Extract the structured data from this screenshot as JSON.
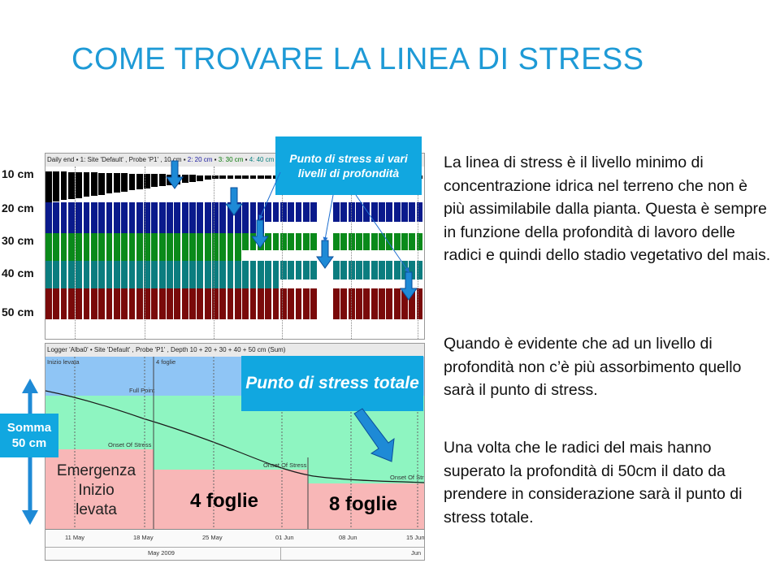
{
  "title": "COME  TROVARE LA LINEA DI STRESS",
  "paragraphs": [
    "La linea di stress è il livello minimo di concentrazione idrica nel terreno che non è più assimilabile dalla pianta. Questa è sempre in funzione della profondità di lavoro delle radici e quindi dello stadio vegetativo del mais.",
    "Quando è evidente che ad un livello di profondità non c’è più assorbimento quello sarà il punto di stress.",
    "Una volta che le radici del mais hanno superato la profondità di 50cm il dato da prendere in considerazione sarà il punto di stress totale."
  ],
  "depth_labels": [
    "10 cm",
    "20 cm",
    "30 cm",
    "40 cm",
    "50 cm"
  ],
  "chart_top": {
    "header_lead": "Daily end",
    "legend": [
      "1: Site 'Default' , Probe 'P1' , 10 cm",
      "2: 20 cm",
      "3: 30 cm",
      "4: 40 cm"
    ],
    "callout": "Punto di stress ai vari livelli di profondità",
    "colors": [
      "#000000",
      "#0a1a8c",
      "#0a8a1a",
      "#0b7d7f",
      "#7a0a0a"
    ]
  },
  "chart_bottom": {
    "header": "Logger 'Alba0' • Site 'Default' , Probe 'P1' , Depth 10 + 20 + 30 + 40 + 50 cm (Sum)",
    "stage_labels": [
      "Inizio levata",
      "4 foglie"
    ],
    "zone_labels": {
      "full_point": "Full Point",
      "onset": "Onset Of Stress"
    },
    "callout": "Punto di stress totale",
    "region_labels": {
      "emergenza": [
        "Emergenza",
        "Inizio",
        "levata"
      ],
      "four": "4 foglie",
      "eight": "8 foglie"
    },
    "x_ticks": [
      "11 May",
      "18 May",
      "25 May",
      "01 Jun",
      "08 Jun",
      "15 Jun"
    ],
    "months": [
      "May 2009",
      "Jun"
    ]
  },
  "side_label": [
    "Somma",
    "50 cm"
  ],
  "colors": {
    "accent": "#1e9ad6",
    "callout": "#11a7e0"
  }
}
